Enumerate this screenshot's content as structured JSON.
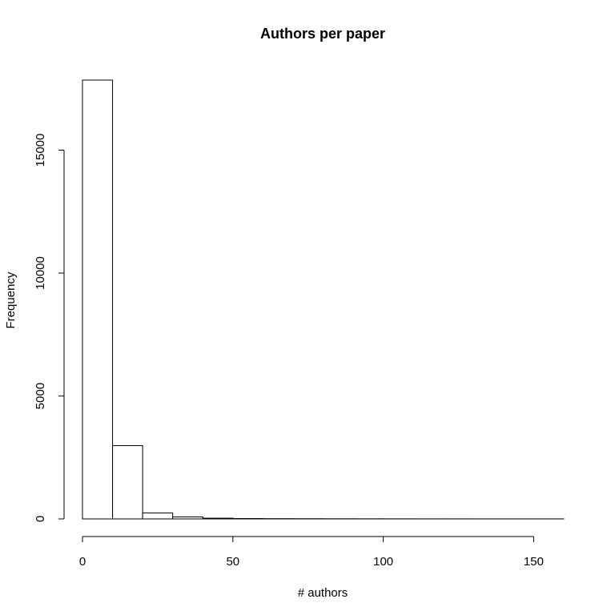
{
  "chart_data": {
    "type": "bar",
    "title": "Authors per paper",
    "xlabel": "# authors",
    "ylabel": "Frequency",
    "bin_width": 10,
    "bins": [
      {
        "start": 0,
        "end": 10,
        "value": 17850
      },
      {
        "start": 10,
        "end": 20,
        "value": 2980
      },
      {
        "start": 20,
        "end": 30,
        "value": 240
      },
      {
        "start": 30,
        "end": 40,
        "value": 80
      },
      {
        "start": 40,
        "end": 50,
        "value": 30
      },
      {
        "start": 50,
        "end": 60,
        "value": 15
      },
      {
        "start": 60,
        "end": 70,
        "value": 10
      },
      {
        "start": 70,
        "end": 80,
        "value": 8
      },
      {
        "start": 80,
        "end": 90,
        "value": 6
      },
      {
        "start": 90,
        "end": 100,
        "value": 5
      },
      {
        "start": 100,
        "end": 110,
        "value": 4
      },
      {
        "start": 110,
        "end": 120,
        "value": 3
      },
      {
        "start": 120,
        "end": 130,
        "value": 3
      },
      {
        "start": 130,
        "end": 140,
        "value": 2
      },
      {
        "start": 140,
        "end": 150,
        "value": 2
      },
      {
        "start": 150,
        "end": 160,
        "value": 2
      }
    ],
    "xlim": [
      0,
      160
    ],
    "ylim": [
      0,
      17850
    ],
    "x_ticks": [
      0,
      50,
      100,
      150
    ],
    "x_tick_labels": [
      "0",
      "50",
      "100",
      "150"
    ],
    "y_ticks": [
      0,
      5000,
      10000,
      15000
    ],
    "y_tick_labels": [
      "0",
      "5000",
      "10000",
      "15000"
    ],
    "grid": false,
    "bar_fill": "#ffffff",
    "bar_stroke": "#000000"
  }
}
